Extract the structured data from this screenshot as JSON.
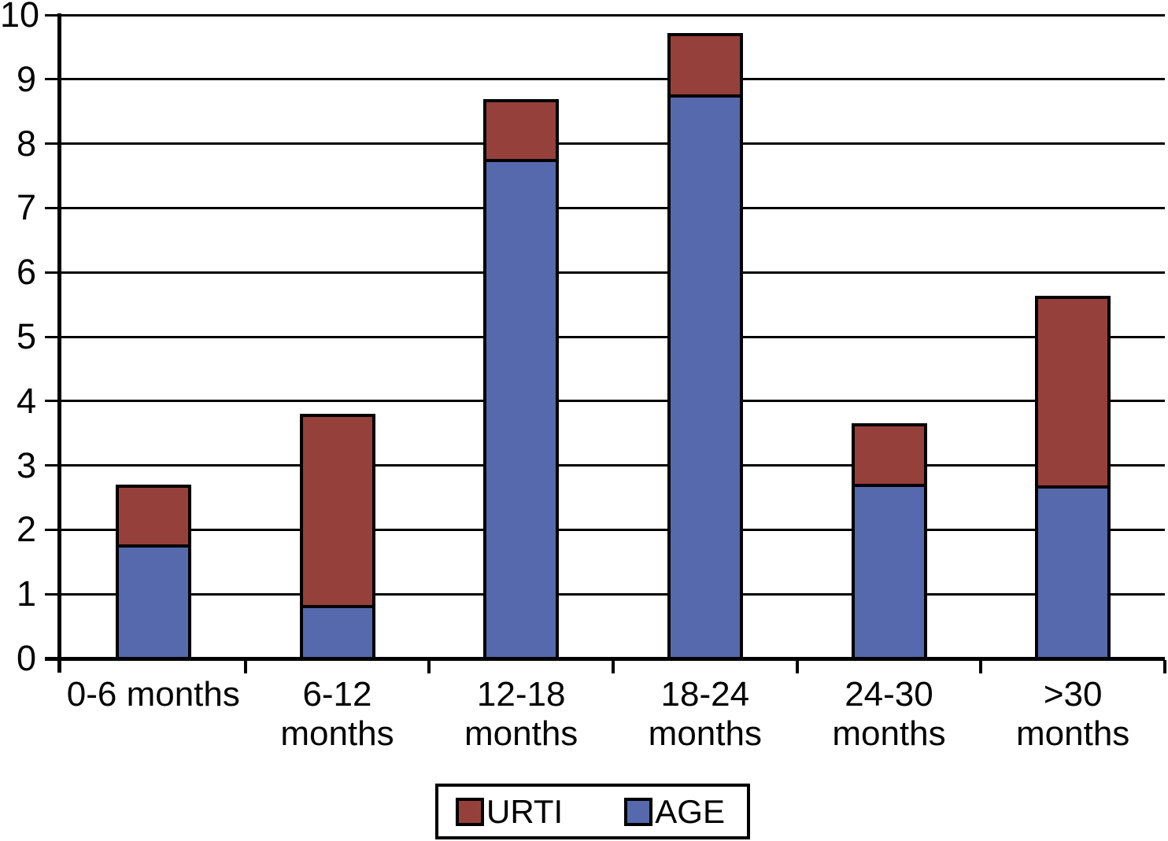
{
  "chart_data": {
    "type": "bar",
    "variant": "stacked-column",
    "title": "",
    "xlabel": "",
    "ylabel": "",
    "categories": [
      "0-6 months",
      "6-12 months",
      "12-18\nmonths",
      "18-24\nmonths",
      "24-30\nmonths",
      ">30\nmonths"
    ],
    "series": [
      {
        "name": "AGE",
        "color": "#5569ac",
        "values": [
          1.72,
          0.78,
          7.72,
          8.72,
          2.66,
          2.64
        ]
      },
      {
        "name": "URTI",
        "color": "#96403c",
        "values": [
          0.98,
          3.02,
          0.97,
          1.0,
          1.0,
          3.0
        ]
      }
    ],
    "stack_order_bottom_to_top": [
      "AGE",
      "URTI"
    ],
    "totals": [
      2.7,
      3.8,
      8.69,
      9.72,
      3.66,
      5.64
    ],
    "ylim": [
      0,
      10
    ],
    "yticks": [
      0,
      1,
      2,
      3,
      4,
      5,
      6,
      7,
      8,
      9,
      10
    ],
    "grid": "horizontal",
    "legend": [
      {
        "label": "URTI",
        "color": "#96403c"
      },
      {
        "label": "AGE",
        "color": "#5569ac"
      }
    ],
    "legend_position": "bottom-center",
    "bar_border_color": "#000000",
    "axis_color": "#000000",
    "background": "#ffffff"
  }
}
